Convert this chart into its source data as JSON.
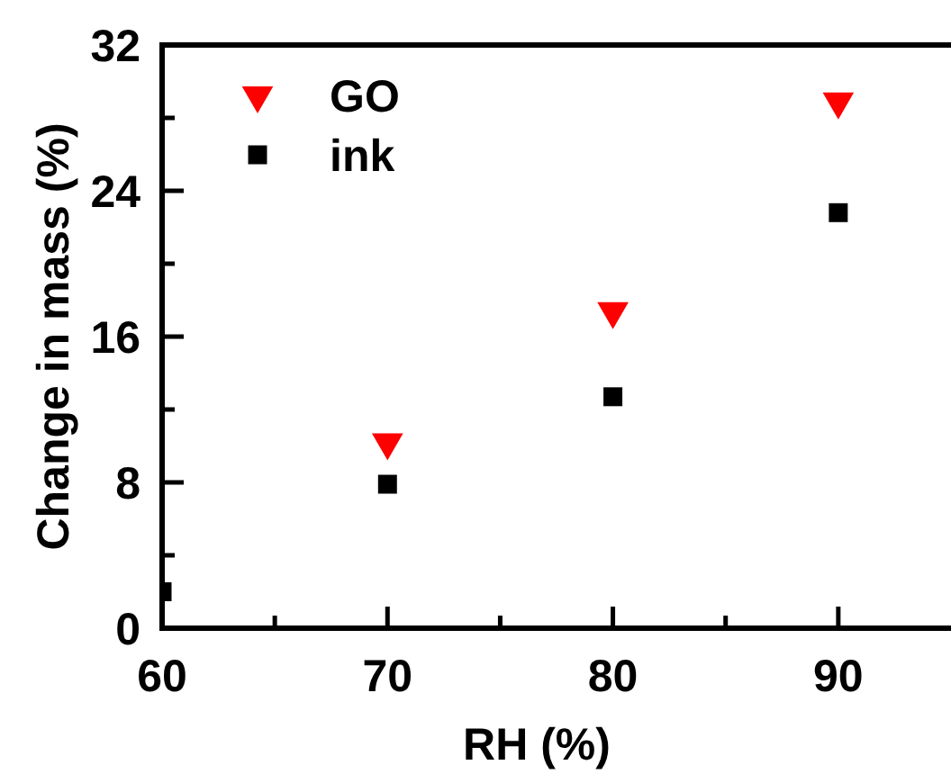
{
  "chart_data": {
    "type": "scatter",
    "xlabel": "RH (%)",
    "ylabel": "Change in mass (%)",
    "x": [
      60,
      70,
      80,
      90
    ],
    "series": [
      {
        "name": "GO",
        "color": "#ff0000",
        "marker": "triangle",
        "values": [
          null,
          10.2,
          17.4,
          28.9
        ]
      },
      {
        "name": "ink",
        "color": "#000000",
        "marker": "square",
        "values": [
          2.0,
          7.9,
          12.7,
          22.8
        ]
      }
    ],
    "xlim": [
      60,
      95
    ],
    "xticks": [
      60,
      {
        "value": 65,
        "label": null
      },
      70,
      {
        "value": 75,
        "label": null
      },
      80,
      {
        "value": 85,
        "label": null
      },
      90
    ],
    "ylim": [
      0,
      32
    ],
    "yticks": [
      0,
      {
        "value": 4,
        "label": null
      },
      8,
      {
        "value": 12,
        "label": null
      },
      16,
      {
        "value": 20,
        "label": null
      },
      24,
      {
        "value": 28,
        "label": null
      },
      32
    ],
    "grid": false,
    "legend": "top left"
  }
}
